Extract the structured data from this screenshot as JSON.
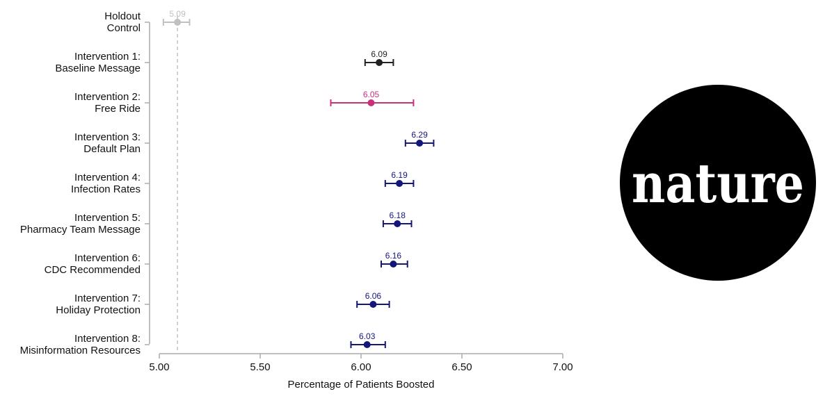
{
  "chart_data": {
    "type": "forest-plot",
    "xlabel": "Percentage of Patients Boosted",
    "xlim": [
      5.0,
      7.0
    ],
    "xticks": [
      "5.00",
      "5.50",
      "6.00",
      "6.50",
      "7.00"
    ],
    "reference_line": {
      "value": 5.09,
      "style": "dashed"
    },
    "colors": {
      "control": "#c0c0c0",
      "baseline": "#222222",
      "free_ride": "#c8317a",
      "other": "#14167a"
    },
    "series": [
      {
        "label_line1": "Holdout",
        "label_line2": "Control",
        "value": 5.09,
        "value_label": "5.09",
        "ci_low": 5.02,
        "ci_high": 5.15,
        "color_key": "control"
      },
      {
        "label_line1": "Intervention 1:",
        "label_line2": "Baseline Message",
        "value": 6.09,
        "value_label": "6.09",
        "ci_low": 6.02,
        "ci_high": 6.16,
        "color_key": "baseline"
      },
      {
        "label_line1": "Intervention 2:",
        "label_line2": "Free Ride",
        "value": 6.05,
        "value_label": "6.05",
        "ci_low": 5.85,
        "ci_high": 6.26,
        "color_key": "free_ride"
      },
      {
        "label_line1": "Intervention 3:",
        "label_line2": "Default Plan",
        "value": 6.29,
        "value_label": "6.29",
        "ci_low": 6.22,
        "ci_high": 6.36,
        "color_key": "other"
      },
      {
        "label_line1": "Intervention 4:",
        "label_line2": "Infection Rates",
        "value": 6.19,
        "value_label": "6.19",
        "ci_low": 6.12,
        "ci_high": 6.26,
        "color_key": "other"
      },
      {
        "label_line1": "Intervention 5:",
        "label_line2": "Pharmacy Team Message",
        "value": 6.18,
        "value_label": "6.18",
        "ci_low": 6.11,
        "ci_high": 6.25,
        "color_key": "other"
      },
      {
        "label_line1": "Intervention 6:",
        "label_line2": "CDC Recommended",
        "value": 6.16,
        "value_label": "6.16",
        "ci_low": 6.1,
        "ci_high": 6.23,
        "color_key": "other"
      },
      {
        "label_line1": "Intervention 7:",
        "label_line2": "Holiday Protection",
        "value": 6.06,
        "value_label": "6.06",
        "ci_low": 5.98,
        "ci_high": 6.14,
        "color_key": "other"
      },
      {
        "label_line1": "Intervention 8:",
        "label_line2": "Misinformation Resources",
        "value": 6.03,
        "value_label": "6.03",
        "ci_low": 5.95,
        "ci_high": 6.12,
        "color_key": "other"
      }
    ]
  },
  "logo": {
    "text": "nature",
    "icon": "nature-journal-logo"
  }
}
